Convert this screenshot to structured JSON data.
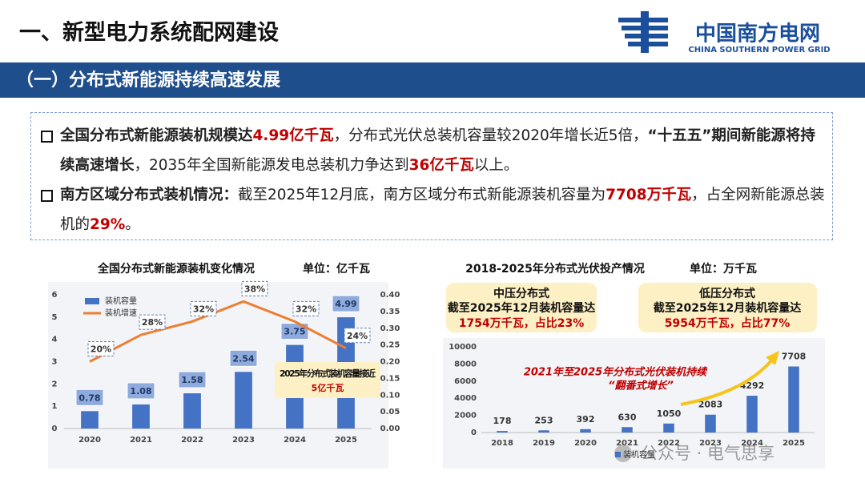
{
  "header": {
    "title": "一、新型电力系统配网建设",
    "logo_name": "中国南方电网",
    "logo_english": "CHINA SOUTHERN POWER GRID",
    "section": "（一）分布式新能源持续高速发展"
  },
  "bullets": [
    [
      {
        "text": "全国分布式新能源装机规模达",
        "style": "bold"
      },
      {
        "text": "4.99亿千瓦",
        "style": "red"
      },
      {
        "text": "，分布式光伏总装机容量较2020年增长近5倍，",
        "style": "normal"
      },
      {
        "text": "“十五五”期间新能源将持续高速增长",
        "style": "bold"
      },
      {
        "text": "，2035年全国新能源发电总装机力争达到",
        "style": "normal"
      },
      {
        "text": "36亿千瓦",
        "style": "red"
      },
      {
        "text": "以上。",
        "style": "normal"
      }
    ],
    [
      {
        "text": "南方区域分布式装机情况：",
        "style": "bold"
      },
      {
        "text": "截至2025年12月底，南方区域分布式新能源装机容量为",
        "style": "normal"
      },
      {
        "text": "7708万千瓦",
        "style": "red"
      },
      {
        "text": "，占全网新能源总装机的",
        "style": "normal"
      },
      {
        "text": "29%",
        "style": "red"
      },
      {
        "text": "。",
        "style": "normal"
      }
    ]
  ],
  "callouts": [
    {
      "title": "中压分布式",
      "line": "截至2025年12月装机容量达",
      "figure": "1754万千瓦，占比23%"
    },
    {
      "title": "低压分布式",
      "line": "截至2025年12月装机容量达",
      "figure": "5954万千瓦，占比77%"
    }
  ],
  "watermark": "公众号 · 电气思享",
  "chart_data": [
    {
      "type": "bar",
      "title": "全国分布式新能源装机变化情况",
      "unit": "单位：亿千瓦",
      "categories": [
        "2020",
        "2021",
        "2022",
        "2023",
        "2024",
        "2025"
      ],
      "series": [
        {
          "name": "装机容量",
          "color": "#4472c4",
          "values": [
            0.78,
            1.08,
            1.58,
            2.54,
            3.75,
            4.99
          ]
        },
        {
          "name": "装机增速",
          "color": "#ed7d31",
          "axis": "y2",
          "values": [
            0.2,
            0.28,
            0.32,
            0.38,
            0.32,
            0.24
          ],
          "value_labels": [
            "20%",
            "28%",
            "32%",
            "38%",
            "32%",
            "24%"
          ]
        }
      ],
      "ylim": [
        0,
        6
      ],
      "yticks": [
        0,
        1,
        2,
        3,
        4,
        5,
        6
      ],
      "y2lim": [
        0,
        0.4
      ],
      "y2ticks": [
        {
          "value": 0,
          "label": "0.00"
        },
        {
          "value": 0.05,
          "label": "0.05"
        },
        {
          "value": 0.1,
          "label": "0.10"
        },
        {
          "value": 0.15,
          "label": "0.15"
        },
        {
          "value": 0.2,
          "label": "0.20"
        },
        {
          "value": 0.25,
          "label": "0.25"
        },
        {
          "value": 0.3,
          "label": "0.30"
        },
        {
          "value": 0.35,
          "label": "0.35"
        },
        {
          "value": 0.4,
          "label": "0.40"
        }
      ],
      "grid": false,
      "legend": "top-left",
      "annotation": {
        "text": "2025年分布式装机容量接近",
        "highlight": "5亿千瓦"
      }
    },
    {
      "type": "bar",
      "title": "2018-2025年分布式光伏投产情况",
      "unit": "单位：万千瓦",
      "categories": [
        "2018",
        "2019",
        "2020",
        "2021",
        "2022",
        "2023",
        "2024",
        "2025"
      ],
      "series": [
        {
          "name": "装机容量",
          "color": "#4472c4",
          "values": [
            178,
            253,
            392,
            630,
            1050,
            2083,
            4292,
            7708
          ]
        }
      ],
      "ylim": [
        0,
        10000
      ],
      "yticks": [
        0,
        2000,
        4000,
        6000,
        8000,
        10000
      ],
      "grid": false,
      "legend": "bottom",
      "annotation": {
        "text": "2021年至2025年分布式光伏装机持续",
        "highlight": "“翻番式增长”"
      }
    }
  ]
}
